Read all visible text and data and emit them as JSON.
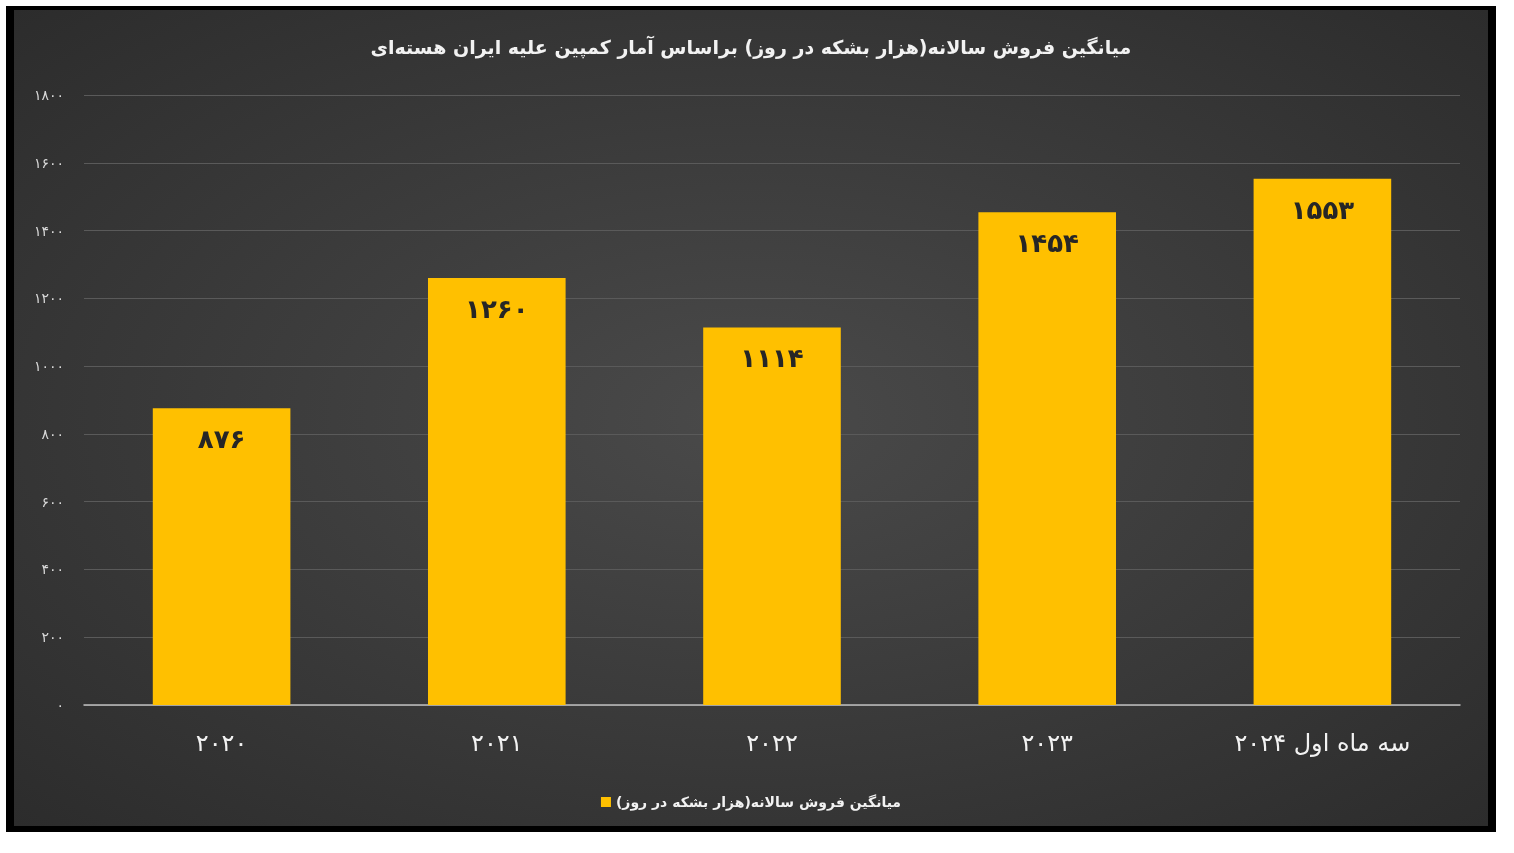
{
  "chart_data": {
    "type": "bar",
    "title": "میانگین فروش سالانه(هزار بشکه در روز) براساس آمار کمپین علیه ایران هسته‌ای",
    "categories": [
      "۲۰۲۰",
      "۲۰۲۱",
      "۲۰۲۲",
      "۲۰۲۳",
      "سه ماه اول ۲۰۲۴"
    ],
    "series": [
      {
        "name": "میانگین فروش سالانه(هزار بشکه در روز)",
        "color": "#ffc000",
        "values": [
          876,
          1260,
          1114,
          1454,
          1553
        ],
        "value_labels": [
          "۸۷۶",
          "۱۲۶۰",
          "۱۱۱۴",
          "۱۴۵۴",
          "۱۵۵۳"
        ]
      }
    ],
    "ylim": [
      0,
      1800
    ],
    "yticks": [
      {
        "value": 0,
        "label": "۰"
      },
      {
        "value": 200,
        "label": "۲۰۰"
      },
      {
        "value": 400,
        "label": "۴۰۰"
      },
      {
        "value": 600,
        "label": "۶۰۰"
      },
      {
        "value": 800,
        "label": "۸۰۰"
      },
      {
        "value": 1000,
        "label": "۱۰۰۰"
      },
      {
        "value": 1200,
        "label": "۱۲۰۰"
      },
      {
        "value": 1400,
        "label": "۱۴۰۰"
      },
      {
        "value": 1600,
        "label": "۱۶۰۰"
      },
      {
        "value": 1800,
        "label": "۱۸۰۰"
      }
    ],
    "grid": "y",
    "legend": "bottom"
  }
}
